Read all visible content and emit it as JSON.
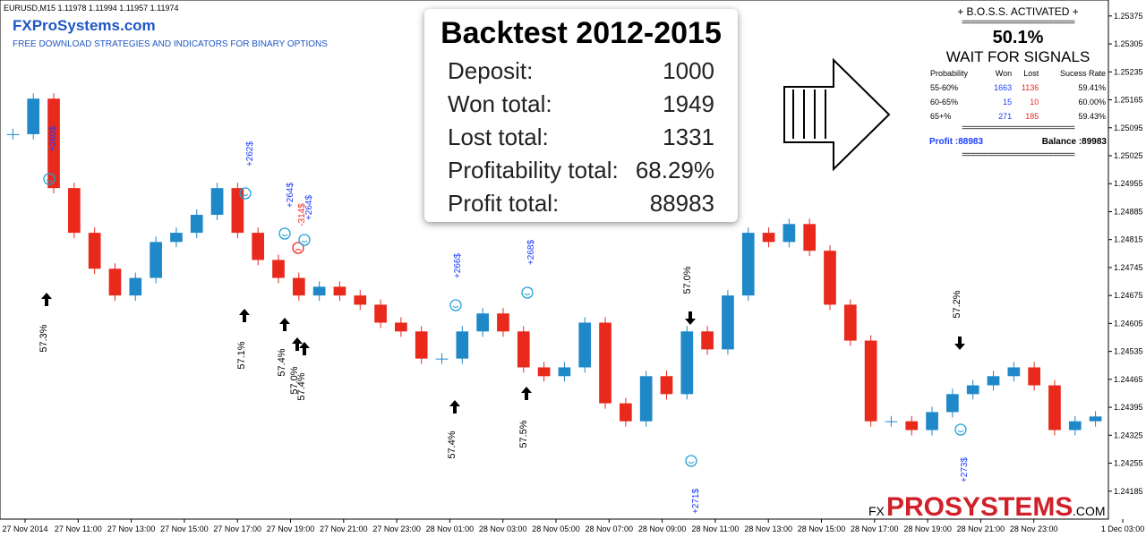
{
  "header": {
    "symbol_line": "EURUSD,M15  1.11978 1.11994 1.11957 1.11974",
    "site": "FXProSystems.com",
    "tagline": "FREE DOWNLOAD STRATEGIES AND INDICATORS FOR BINARY OPTIONS"
  },
  "chart_data": {
    "type": "candlestick",
    "closes": [
      1.25079,
      1.25168,
      1.24944,
      1.24832,
      1.24742,
      1.24675,
      1.24719,
      1.24809,
      1.24832,
      1.24877,
      1.24944,
      1.24832,
      1.24764,
      1.24719,
      1.24675,
      1.24697,
      1.24675,
      1.24652,
      1.24607,
      1.24585,
      1.24517,
      1.24517,
      1.24585,
      1.2463,
      1.24585,
      1.24495,
      1.24473,
      1.24495,
      1.24607,
      1.24405,
      1.2436,
      1.24473,
      1.24428,
      1.24585,
      1.2454,
      1.24675,
      1.24832,
      1.24809,
      1.24854,
      1.24787,
      1.24652,
      1.24562,
      1.2436,
      1.2436,
      1.24338,
      1.24383,
      1.24428,
      1.2445,
      1.24473,
      1.24495,
      1.2445,
      1.24338,
      1.2436,
      1.24372
    ],
    "up_color": "#1e88c8",
    "down_color": "#e8291c",
    "ylim": [
      1.24115,
      1.25415
    ],
    "yticks": [
      1.25375,
      1.25305,
      1.25235,
      1.25165,
      1.25095,
      1.25025,
      1.24955,
      1.24885,
      1.24815,
      1.24745,
      1.24675,
      1.24605,
      1.24535,
      1.24465,
      1.24395,
      1.24325,
      1.24255,
      1.24185
    ],
    "categories": [
      "27 Nov 2014",
      "27 Nov 11:00",
      "27 Nov 13:00",
      "27 Nov 15:00",
      "27 Nov 17:00",
      "27 Nov 19:00",
      "27 Nov 21:00",
      "27 Nov 23:00",
      "28 Nov 01:00",
      "28 Nov 03:00",
      "28 Nov 05:00",
      "28 Nov 07:00",
      "28 Nov 09:00",
      "28 Nov 11:00",
      "28 Nov 13:00",
      "28 Nov 15:00",
      "28 Nov 17:00",
      "28 Nov 19:00",
      "28 Nov 21:00",
      "28 Nov 23:00",
      "1 Dec 03:00"
    ]
  },
  "signals": [
    {
      "probability": "57.3%",
      "result": "+260$"
    },
    {
      "probability": "57.1%",
      "result": "+262$"
    },
    {
      "probability": "57.4%",
      "result": "+264$"
    },
    {
      "probability": "57.0%",
      "result": "-314$"
    },
    {
      "probability": "57.4%",
      "result": "+264$"
    },
    {
      "probability": "57.4%",
      "result": "+266$"
    },
    {
      "probability": "57.5%",
      "result": "+268$"
    },
    {
      "probability": "57.0%",
      "result": "+271$"
    },
    {
      "probability": "57.2%",
      "result": "+273$"
    }
  ],
  "backtest": {
    "title": "Backtest 2012-2015",
    "rows": [
      [
        "Deposit:",
        "1000"
      ],
      [
        "Won total:",
        "1949"
      ],
      [
        "Lost total:",
        "1331"
      ],
      [
        "Profitability total:",
        "68.29%"
      ],
      [
        "Profit total:",
        "88983"
      ]
    ]
  },
  "panel": {
    "title": "+ B.O.S.S. ACTIVATED +",
    "separator": "==========================",
    "percent": "50.1%",
    "status": "WAIT FOR SIGNALS",
    "columns": [
      "Probability",
      "Won",
      "Lost",
      "Sucess Rate"
    ],
    "rows": [
      [
        "55-60%",
        "1663",
        "1136",
        "59.41%"
      ],
      [
        "60-65%",
        "15",
        "10",
        "60.00%"
      ],
      [
        "65+%",
        "271",
        "185",
        "59.43%"
      ]
    ],
    "profit": "Profit :88983",
    "balance": "Balance :89983"
  },
  "logo": {
    "prefix": "FX",
    "main": "PROSYSTEMS",
    "suffix": ".COM"
  }
}
